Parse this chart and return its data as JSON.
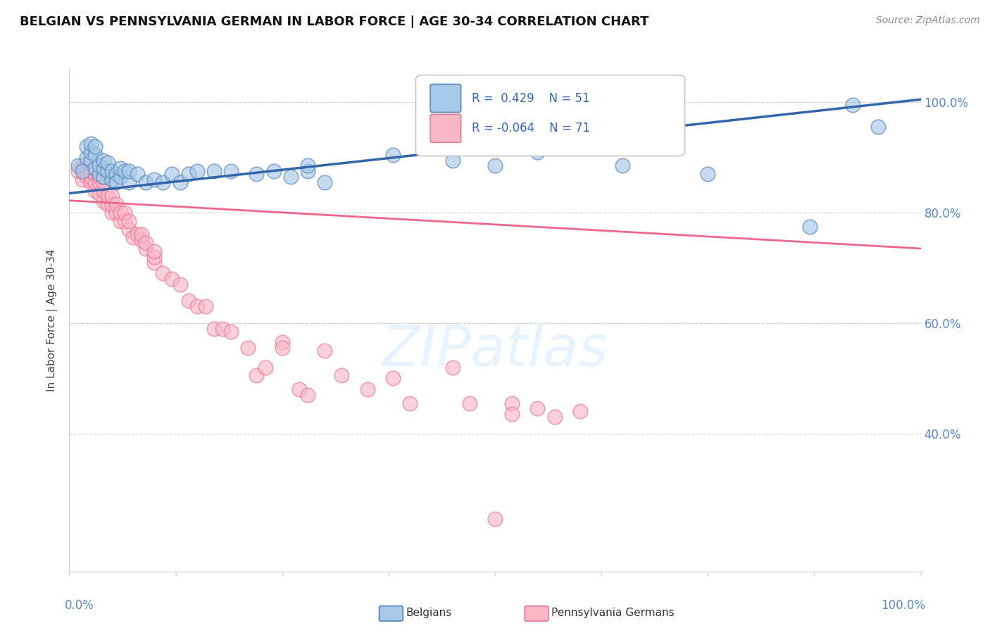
{
  "title": "BELGIAN VS PENNSYLVANIA GERMAN IN LABOR FORCE | AGE 30-34 CORRELATION CHART",
  "source": "Source: ZipAtlas.com",
  "ylabel": "In Labor Force | Age 30-34",
  "xlim": [
    0.0,
    1.0
  ],
  "ylim": [
    0.15,
    1.06
  ],
  "yticks": [
    0.4,
    0.6,
    0.8,
    1.0
  ],
  "ytick_labels": [
    "40.0%",
    "60.0%",
    "80.0%",
    "100.0%"
  ],
  "blue_R": 0.429,
  "blue_N": 51,
  "pink_R": -0.064,
  "pink_N": 71,
  "blue_scatter_color": "#a8c8e8",
  "blue_edge_color": "#5588bb",
  "pink_scatter_color": "#f8b8c8",
  "pink_edge_color": "#e87898",
  "blue_line_color": "#3366aa",
  "pink_line_color": "#ee6688",
  "legend_label_blue": "Belgians",
  "legend_label_pink": "Pennsylvania Germans",
  "watermark": "ZIPatlas",
  "blue_line_start_y": 0.835,
  "blue_line_end_y": 1.005,
  "pink_line_start_y": 0.822,
  "pink_line_end_y": 0.735,
  "blue_x": [
    0.01,
    0.015,
    0.02,
    0.02,
    0.025,
    0.025,
    0.025,
    0.03,
    0.03,
    0.03,
    0.035,
    0.035,
    0.04,
    0.04,
    0.04,
    0.045,
    0.045,
    0.05,
    0.05,
    0.055,
    0.055,
    0.06,
    0.06,
    0.065,
    0.07,
    0.07,
    0.08,
    0.09,
    0.1,
    0.11,
    0.12,
    0.13,
    0.14,
    0.15,
    0.17,
    0.19,
    0.22,
    0.24,
    0.26,
    0.28,
    0.28,
    0.3,
    0.38,
    0.45,
    0.5,
    0.55,
    0.65,
    0.75,
    0.87,
    0.92,
    0.95
  ],
  "blue_y": [
    0.885,
    0.875,
    0.9,
    0.92,
    0.895,
    0.91,
    0.925,
    0.905,
    0.92,
    0.88,
    0.87,
    0.885,
    0.865,
    0.88,
    0.895,
    0.875,
    0.89,
    0.86,
    0.875,
    0.87,
    0.855,
    0.865,
    0.88,
    0.875,
    0.855,
    0.875,
    0.87,
    0.855,
    0.86,
    0.855,
    0.87,
    0.855,
    0.87,
    0.875,
    0.875,
    0.875,
    0.87,
    0.875,
    0.865,
    0.875,
    0.885,
    0.855,
    0.905,
    0.895,
    0.885,
    0.91,
    0.885,
    0.87,
    0.775,
    0.995,
    0.955
  ],
  "pink_x": [
    0.01,
    0.015,
    0.015,
    0.02,
    0.02,
    0.02,
    0.025,
    0.025,
    0.025,
    0.03,
    0.03,
    0.03,
    0.03,
    0.035,
    0.035,
    0.035,
    0.04,
    0.04,
    0.04,
    0.04,
    0.045,
    0.045,
    0.05,
    0.05,
    0.05,
    0.055,
    0.055,
    0.06,
    0.06,
    0.065,
    0.065,
    0.07,
    0.07,
    0.075,
    0.08,
    0.085,
    0.085,
    0.09,
    0.09,
    0.1,
    0.1,
    0.1,
    0.11,
    0.12,
    0.13,
    0.14,
    0.15,
    0.16,
    0.17,
    0.18,
    0.19,
    0.21,
    0.22,
    0.23,
    0.25,
    0.25,
    0.27,
    0.28,
    0.3,
    0.32,
    0.35,
    0.38,
    0.4,
    0.45,
    0.47,
    0.52,
    0.52,
    0.55,
    0.57,
    0.6,
    0.5
  ],
  "pink_y": [
    0.875,
    0.86,
    0.885,
    0.865,
    0.875,
    0.89,
    0.855,
    0.865,
    0.875,
    0.84,
    0.855,
    0.87,
    0.88,
    0.835,
    0.855,
    0.865,
    0.82,
    0.84,
    0.855,
    0.865,
    0.815,
    0.83,
    0.8,
    0.815,
    0.83,
    0.8,
    0.815,
    0.785,
    0.8,
    0.785,
    0.8,
    0.77,
    0.785,
    0.755,
    0.76,
    0.75,
    0.76,
    0.735,
    0.745,
    0.71,
    0.72,
    0.73,
    0.69,
    0.68,
    0.67,
    0.64,
    0.63,
    0.63,
    0.59,
    0.59,
    0.585,
    0.555,
    0.505,
    0.52,
    0.565,
    0.555,
    0.48,
    0.47,
    0.55,
    0.505,
    0.48,
    0.5,
    0.455,
    0.52,
    0.455,
    0.455,
    0.435,
    0.445,
    0.43,
    0.44,
    0.245
  ]
}
